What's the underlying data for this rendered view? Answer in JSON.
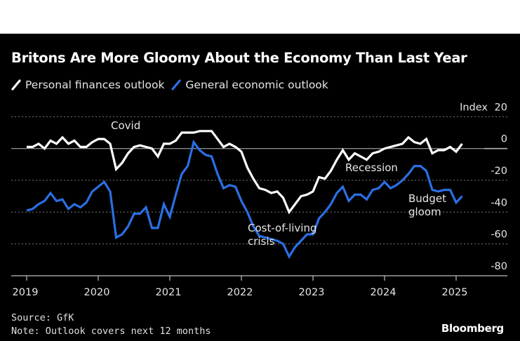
{
  "header": {
    "title": "Britons Are More Gloomy About the Economy Than Last Year"
  },
  "legend": [
    {
      "label": "Personal finances outlook",
      "color": "#ffffff"
    },
    {
      "label": "General economic outlook",
      "color": "#2b6fe3"
    }
  ],
  "footer": {
    "source": "Source: GfK",
    "note": "Note: Outlook covers next 12 months",
    "brand": "Bloomberg"
  },
  "chart_data": {
    "type": "line",
    "title": "Britons Are More Gloomy About the Economy Than Last Year",
    "xlabel": "",
    "ylabel": "Index",
    "ylabel_unit_text": "Index",
    "ylim": [
      -80,
      20
    ],
    "yticks": [
      20,
      0,
      -20,
      -40,
      -60,
      -80
    ],
    "ytick_labels": [
      "20",
      "0",
      "-20",
      "-40",
      "-60",
      "-80"
    ],
    "xticks": [
      "2019",
      "2020",
      "2021",
      "2022",
      "2023",
      "2024",
      "2025"
    ],
    "x_start": "2019-01",
    "x_end": "2025-02",
    "frequency": "monthly",
    "grid": true,
    "legend_position": "top-left",
    "series": [
      {
        "name": "Personal finances outlook",
        "color": "#ffffff",
        "values": [
          1,
          1,
          3,
          0,
          5,
          3,
          7,
          3,
          5,
          1,
          1,
          4,
          6,
          6,
          3,
          -13,
          -9,
          -3,
          1,
          2,
          1,
          0,
          -5,
          3,
          3,
          5,
          10,
          10,
          10,
          11,
          11,
          11,
          6,
          1,
          3,
          1,
          -2,
          -12,
          -19,
          -25,
          -26,
          -28,
          -27,
          -31,
          -40,
          -35,
          -30,
          -29,
          -27,
          -18,
          -19,
          -14,
          -7,
          -1,
          -7,
          -3,
          -5,
          -7,
          -3,
          -2,
          0,
          1,
          2,
          3,
          7,
          4,
          3,
          6,
          -3,
          -1,
          -1,
          1,
          -2,
          3
        ]
      },
      {
        "name": "General economic outlook",
        "color": "#2b6fe3",
        "values": [
          -39,
          -38,
          -35,
          -33,
          -28,
          -33,
          -32,
          -38,
          -35,
          -37,
          -34,
          -27,
          -24,
          -21,
          -27,
          -56,
          -54,
          -49,
          -41,
          -41,
          -37,
          -50,
          -50,
          -35,
          -43,
          -29,
          -16,
          -11,
          4,
          -1,
          -4,
          -5,
          -16,
          -25,
          -23,
          -24,
          -33,
          -40,
          -49,
          -55,
          -56,
          -57,
          -58,
          -60,
          -68,
          -62,
          -58,
          -54,
          -54,
          -44,
          -40,
          -35,
          -28,
          -24,
          -33,
          -29,
          -29,
          -32,
          -26,
          -25,
          -21,
          -25,
          -23,
          -20,
          -16,
          -11,
          -11,
          -14,
          -26,
          -27,
          -26,
          -26,
          -34,
          -30
        ]
      }
    ],
    "annotations": [
      {
        "text": "Covid",
        "x": "2020-04"
      },
      {
        "text": "Cost-of-living crisis",
        "lines": [
          "Cost-of-living",
          "crisis"
        ],
        "x": "2022-09"
      },
      {
        "text": "Recession",
        "x": "2023-12"
      },
      {
        "text": "Budget gloom",
        "lines": [
          "Budget",
          "gloom"
        ],
        "x": "2024-10"
      }
    ]
  }
}
